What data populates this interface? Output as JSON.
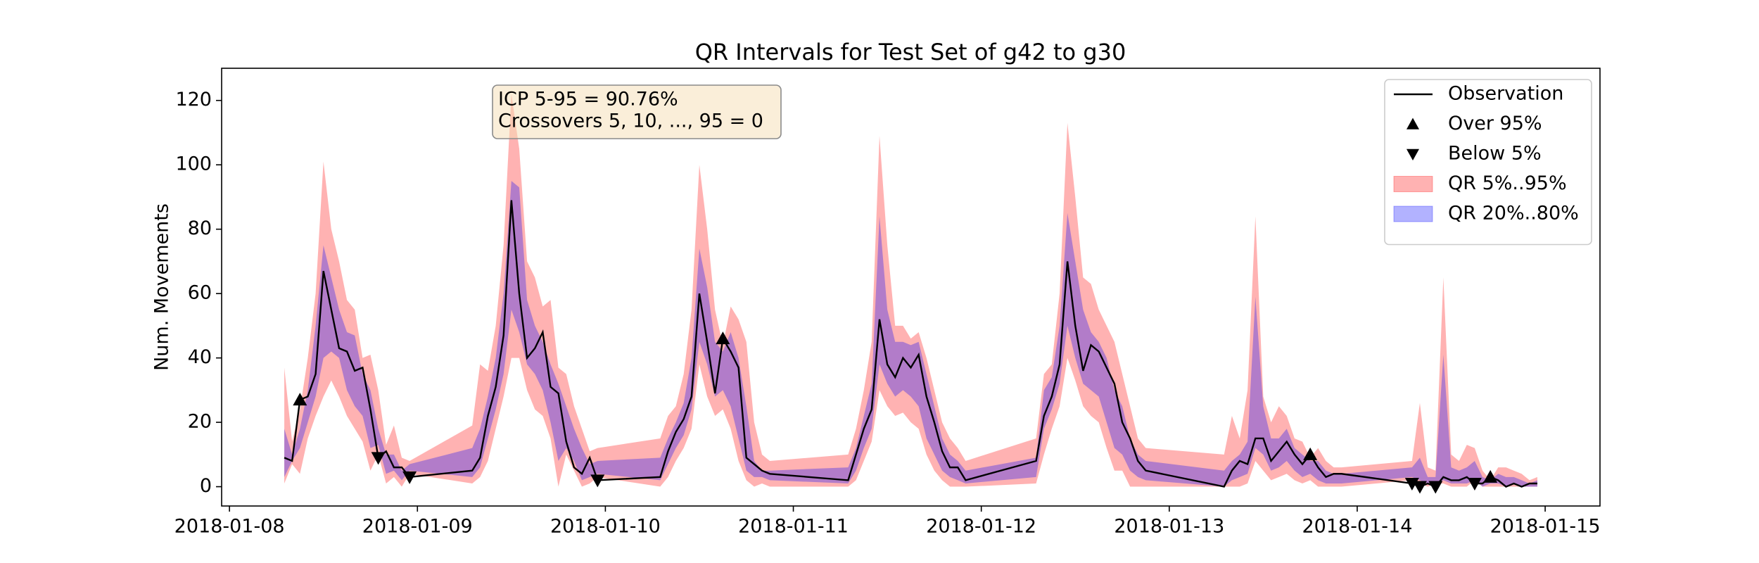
{
  "chart_data": {
    "type": "line",
    "title": "QR Intervals for Test Set of g42 to g30",
    "y_label": "Num. Movements",
    "annotation": [
      "ICP 5-95 = 90.76%",
      "Crossovers 5, 10, ..., 95 = 0"
    ],
    "legend": "upper right",
    "xlim": [
      "2018-01-07T23:00",
      "2018-01-15T07:00"
    ],
    "xticks": [
      {
        "value": "2018-01-08T00:00",
        "label": "2018-01-08"
      },
      {
        "value": "2018-01-09T00:00",
        "label": "2018-01-09"
      },
      {
        "value": "2018-01-10T00:00",
        "label": "2018-01-10"
      },
      {
        "value": "2018-01-11T00:00",
        "label": "2018-01-11"
      },
      {
        "value": "2018-01-12T00:00",
        "label": "2018-01-12"
      },
      {
        "value": "2018-01-13T00:00",
        "label": "2018-01-13"
      },
      {
        "value": "2018-01-14T00:00",
        "label": "2018-01-14"
      },
      {
        "value": "2018-01-15T00:00",
        "label": "2018-01-15"
      }
    ],
    "ylim": [
      -6,
      130
    ],
    "yticks": [
      0,
      20,
      40,
      60,
      80,
      100,
      120
    ],
    "x": [
      "2018-01-08T07:00",
      "2018-01-08T08:00",
      "2018-01-08T09:00",
      "2018-01-08T10:00",
      "2018-01-08T11:00",
      "2018-01-08T12:00",
      "2018-01-08T13:00",
      "2018-01-08T14:00",
      "2018-01-08T15:00",
      "2018-01-08T16:00",
      "2018-01-08T17:00",
      "2018-01-08T18:00",
      "2018-01-08T19:00",
      "2018-01-08T20:00",
      "2018-01-08T21:00",
      "2018-01-08T22:00",
      "2018-01-08T23:00",
      "2018-01-09T07:00",
      "2018-01-09T08:00",
      "2018-01-09T09:00",
      "2018-01-09T10:00",
      "2018-01-09T11:00",
      "2018-01-09T12:00",
      "2018-01-09T13:00",
      "2018-01-09T14:00",
      "2018-01-09T15:00",
      "2018-01-09T16:00",
      "2018-01-09T17:00",
      "2018-01-09T18:00",
      "2018-01-09T19:00",
      "2018-01-09T20:00",
      "2018-01-09T21:00",
      "2018-01-09T22:00",
      "2018-01-09T23:00",
      "2018-01-10T07:00",
      "2018-01-10T08:00",
      "2018-01-10T09:00",
      "2018-01-10T10:00",
      "2018-01-10T11:00",
      "2018-01-10T12:00",
      "2018-01-10T13:00",
      "2018-01-10T14:00",
      "2018-01-10T15:00",
      "2018-01-10T16:00",
      "2018-01-10T17:00",
      "2018-01-10T18:00",
      "2018-01-10T19:00",
      "2018-01-10T20:00",
      "2018-01-10T21:00",
      "2018-01-11T07:00",
      "2018-01-11T08:00",
      "2018-01-11T09:00",
      "2018-01-11T10:00",
      "2018-01-11T11:00",
      "2018-01-11T12:00",
      "2018-01-11T13:00",
      "2018-01-11T14:00",
      "2018-01-11T15:00",
      "2018-01-11T16:00",
      "2018-01-11T17:00",
      "2018-01-11T18:00",
      "2018-01-11T19:00",
      "2018-01-11T20:00",
      "2018-01-11T21:00",
      "2018-01-11T22:00",
      "2018-01-12T07:00",
      "2018-01-12T08:00",
      "2018-01-12T09:00",
      "2018-01-12T10:00",
      "2018-01-12T11:00",
      "2018-01-12T12:00",
      "2018-01-12T13:00",
      "2018-01-12T14:00",
      "2018-01-12T15:00",
      "2018-01-12T16:00",
      "2018-01-12T17:00",
      "2018-01-12T18:00",
      "2018-01-12T19:00",
      "2018-01-12T20:00",
      "2018-01-12T21:00",
      "2018-01-13T07:00",
      "2018-01-13T08:00",
      "2018-01-13T09:00",
      "2018-01-13T10:00",
      "2018-01-13T11:00",
      "2018-01-13T12:00",
      "2018-01-13T13:00",
      "2018-01-13T14:00",
      "2018-01-13T15:00",
      "2018-01-13T16:00",
      "2018-01-13T17:00",
      "2018-01-13T18:00",
      "2018-01-13T19:00",
      "2018-01-13T20:00",
      "2018-01-13T21:00",
      "2018-01-13T22:00",
      "2018-01-14T07:00",
      "2018-01-14T08:00",
      "2018-01-14T09:00",
      "2018-01-14T10:00",
      "2018-01-14T11:00",
      "2018-01-14T12:00",
      "2018-01-14T13:00",
      "2018-01-14T14:00",
      "2018-01-14T15:00",
      "2018-01-14T16:00",
      "2018-01-14T17:00",
      "2018-01-14T18:00",
      "2018-01-14T19:00",
      "2018-01-14T20:00",
      "2018-01-14T21:00",
      "2018-01-14T22:00",
      "2018-01-14T23:00"
    ],
    "series": [
      {
        "name": "Observation",
        "color": "#000000",
        "values": [
          9,
          8,
          27,
          28,
          35,
          67,
          55,
          43,
          42,
          36,
          37,
          24,
          9,
          11,
          6,
          6,
          3,
          5,
          9,
          22,
          31,
          47,
          89,
          60,
          40,
          43,
          48,
          31,
          29,
          14,
          6,
          4,
          9,
          2,
          3,
          11,
          17,
          21,
          28,
          60,
          45,
          29,
          46,
          42,
          37,
          9,
          7,
          5,
          4,
          2,
          10,
          18,
          24,
          52,
          38,
          34,
          40,
          37,
          41,
          28,
          20,
          11,
          6,
          6,
          2,
          8,
          22,
          28,
          38,
          70,
          50,
          36,
          44,
          42,
          37,
          32,
          20,
          15,
          8,
          5,
          0,
          5,
          8,
          7,
          15,
          15,
          8,
          11,
          14,
          10,
          7,
          10,
          6,
          3,
          4,
          4,
          1,
          0,
          1,
          0,
          3,
          2,
          2,
          3,
          1,
          1,
          3,
          2,
          0,
          1,
          0,
          1,
          1
        ]
      }
    ],
    "markers": [
      {
        "name": "Over 95%",
        "marker": "triangle-up",
        "color": "#000000",
        "x": [
          "2018-01-08T09:00",
          "2018-01-10T15:00",
          "2018-01-13T18:00",
          "2018-01-14T17:00"
        ],
        "values": [
          27,
          46,
          10,
          3
        ]
      },
      {
        "name": "Below 5%",
        "marker": "triangle-down",
        "color": "#000000",
        "x": [
          "2018-01-08T19:00",
          "2018-01-08T23:00",
          "2018-01-09T23:00",
          "2018-01-14T07:00",
          "2018-01-14T08:00",
          "2018-01-14T10:00",
          "2018-01-14T15:00"
        ],
        "values": [
          9,
          3,
          2,
          1,
          0,
          0,
          1
        ]
      }
    ],
    "bands": [
      {
        "name": "QR 5%..95%",
        "color": "#ff0000",
        "opacity": 0.3,
        "lower": [
          1,
          7,
          4,
          15,
          22,
          28,
          33,
          28,
          22,
          18,
          14,
          5,
          10,
          1,
          3,
          0,
          4,
          1,
          3,
          8,
          18,
          28,
          40,
          40,
          30,
          24,
          22,
          15,
          0,
          10,
          5,
          0,
          1,
          3,
          0,
          3,
          8,
          12,
          18,
          38,
          28,
          22,
          24,
          18,
          8,
          2,
          0,
          1,
          0,
          0,
          2,
          8,
          14,
          30,
          25,
          22,
          23,
          20,
          18,
          10,
          5,
          2,
          0,
          0,
          0,
          1,
          10,
          18,
          25,
          40,
          33,
          25,
          22,
          20,
          12,
          5,
          5,
          0,
          0,
          0,
          0,
          0,
          0,
          1,
          8,
          5,
          2,
          3,
          4,
          2,
          1,
          2,
          0,
          0,
          0,
          0,
          2,
          1,
          0,
          1,
          1,
          0,
          0,
          0,
          2,
          0,
          0,
          0,
          0,
          0,
          0,
          0,
          0
        ],
        "upper": [
          37,
          14,
          24,
          40,
          60,
          101,
          80,
          70,
          58,
          55,
          40,
          41,
          30,
          13,
          19,
          9,
          8,
          19,
          38,
          36,
          50,
          75,
          122,
          105,
          70,
          65,
          56,
          58,
          37,
          35,
          25,
          18,
          11,
          12,
          15,
          22,
          25,
          35,
          55,
          100,
          80,
          55,
          44,
          56,
          52,
          45,
          20,
          10,
          8,
          10,
          18,
          30,
          45,
          109,
          75,
          50,
          50,
          46,
          48,
          40,
          30,
          20,
          15,
          12,
          8,
          15,
          35,
          38,
          60,
          113,
          90,
          65,
          63,
          55,
          50,
          45,
          35,
          25,
          15,
          12,
          10,
          22,
          15,
          30,
          84,
          28,
          20,
          25,
          22,
          15,
          14,
          9,
          12,
          8,
          6,
          6,
          8,
          26,
          6,
          5,
          65,
          10,
          8,
          13,
          12,
          5,
          2,
          6,
          6,
          5,
          4,
          2,
          3
        ]
      },
      {
        "name": "QR 20%..80%",
        "color": "#0000ff",
        "opacity": 0.3,
        "lower": [
          3,
          8,
          12,
          20,
          28,
          40,
          42,
          40,
          30,
          25,
          22,
          12,
          13,
          4,
          5,
          2,
          5,
          3,
          6,
          15,
          24,
          35,
          55,
          48,
          38,
          35,
          30,
          20,
          8,
          12,
          8,
          2,
          3,
          4,
          2,
          7,
          12,
          16,
          24,
          45,
          38,
          28,
          30,
          25,
          15,
          5,
          3,
          3,
          2,
          1,
          5,
          12,
          18,
          38,
          32,
          28,
          30,
          28,
          25,
          15,
          10,
          5,
          3,
          2,
          1,
          3,
          18,
          24,
          32,
          50,
          40,
          32,
          30,
          28,
          20,
          12,
          10,
          5,
          3,
          2,
          0,
          2,
          3,
          4,
          12,
          10,
          5,
          6,
          8,
          5,
          3,
          4,
          2,
          1,
          1,
          1,
          3,
          2,
          1,
          1,
          2,
          1,
          1,
          1,
          2,
          0,
          1,
          1,
          0,
          1,
          0,
          0,
          0
        ],
        "upper": [
          18,
          10,
          18,
          30,
          50,
          75,
          65,
          55,
          48,
          47,
          35,
          30,
          18,
          10,
          10,
          5,
          7,
          12,
          18,
          28,
          40,
          60,
          95,
          93,
          58,
          50,
          45,
          38,
          32,
          25,
          18,
          12,
          7,
          8,
          9,
          15,
          20,
          26,
          40,
          74,
          62,
          45,
          42,
          48,
          40,
          25,
          8,
          5,
          5,
          6,
          12,
          22,
          32,
          84,
          55,
          45,
          45,
          44,
          45,
          35,
          25,
          15,
          10,
          8,
          5,
          9,
          30,
          34,
          50,
          85,
          70,
          55,
          48,
          45,
          40,
          30,
          25,
          15,
          10,
          8,
          5,
          8,
          10,
          14,
          59,
          25,
          15,
          15,
          18,
          12,
          10,
          8,
          8,
          5,
          4,
          4,
          6,
          9,
          3,
          3,
          41,
          6,
          5,
          6,
          8,
          3,
          2,
          4,
          3,
          3,
          2,
          1,
          2
        ]
      }
    ]
  }
}
